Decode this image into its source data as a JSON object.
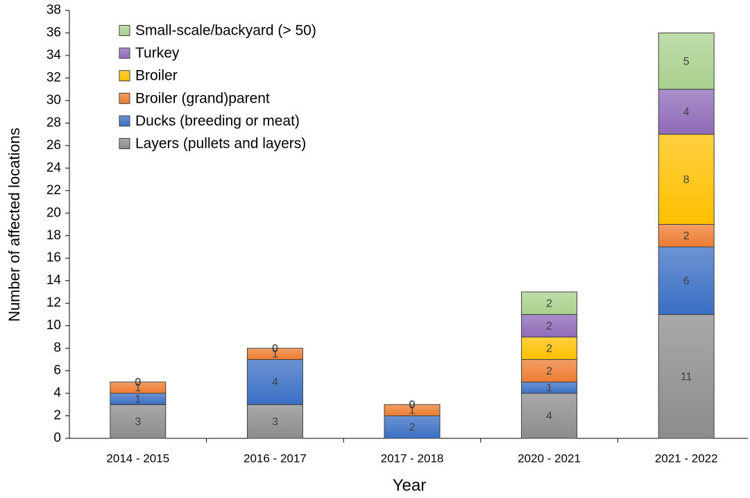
{
  "chart_data": {
    "type": "stacked_bar",
    "x_label": "Year",
    "y_label": "Number of affected locations",
    "categories": [
      "2014 - 2015",
      "2016 - 2017",
      "2017 - 2018",
      "2020 - 2021",
      "2021 - 2022"
    ],
    "series": [
      {
        "name": "Layers (pullets and layers)",
        "color": "#8c8c8c",
        "values": [
          3,
          3,
          null,
          4,
          11
        ]
      },
      {
        "name": "Ducks (breeding or meat)",
        "color": "#3a6fc4",
        "values": [
          1,
          4,
          2,
          1,
          6
        ]
      },
      {
        "name": "Broiler (grand)parent",
        "color": "#ed7d31",
        "values": [
          1,
          1,
          1,
          2,
          2
        ]
      },
      {
        "name": "Broiler",
        "color": "#ffc000",
        "values": [
          0,
          0,
          0,
          2,
          8
        ]
      },
      {
        "name": "Turkey",
        "color": "#8e6bb8",
        "values": [
          0,
          0,
          0,
          2,
          4
        ]
      },
      {
        "name": "Small-scale/backyard (> 50)",
        "color": "#a9d18e",
        "values": [
          0,
          0,
          0,
          2,
          5
        ]
      }
    ],
    "ylim": [
      0,
      38
    ],
    "yticks": [
      0,
      2,
      4,
      6,
      8,
      10,
      12,
      14,
      16,
      18,
      20,
      22,
      24,
      26,
      28,
      30,
      32,
      34,
      36,
      38
    ],
    "legend": "top-left"
  }
}
